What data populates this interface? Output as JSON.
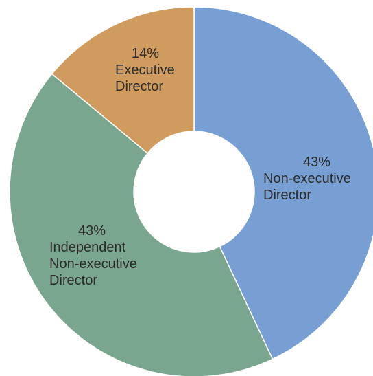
{
  "chart_data": {
    "type": "pie",
    "categories": [
      "Non-executive Director",
      "Independent Non-executive Director",
      "Executive Director"
    ],
    "values": [
      43,
      43,
      14
    ],
    "value_labels": [
      "43%",
      "43%",
      "14%"
    ],
    "colors": [
      "#779fd4",
      "#7aa58f",
      "#cf9b5f"
    ],
    "donut": true
  }
}
